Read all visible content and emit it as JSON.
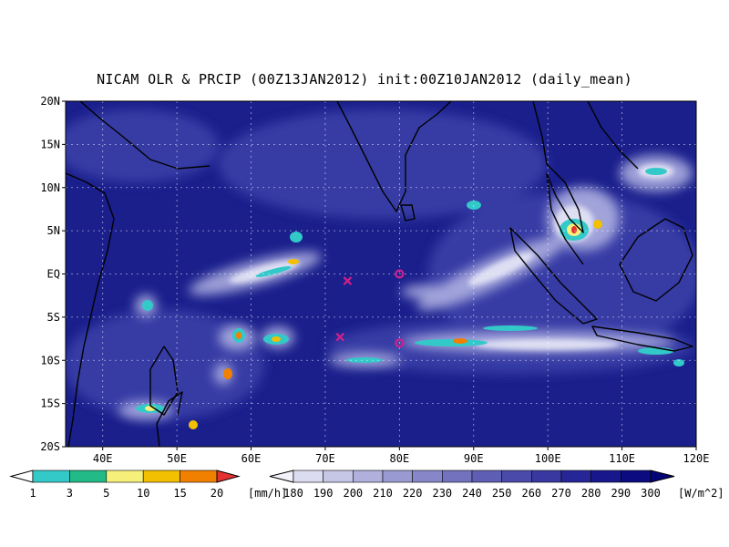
{
  "title": "NICAM OLR & PRCIP (00Z13JAN2012) init:00Z10JAN2012 (daily_mean)",
  "map": {
    "lon_range": [
      35,
      120
    ],
    "lat_range": [
      -20,
      20
    ],
    "lat_ticks": [
      "20N",
      "15N",
      "10N",
      "5N",
      "EQ",
      "5S",
      "10S",
      "15S",
      "20S"
    ],
    "lon_ticks": [
      "40E",
      "50E",
      "60E",
      "70E",
      "80E",
      "90E",
      "100E",
      "110E",
      "120E"
    ],
    "gridlines": "dotted",
    "background_color": "#1a1f8c",
    "coastline_color": "#000000"
  },
  "markers": [
    {
      "symbol": "x",
      "lon": 73.0,
      "lat": -0.8,
      "color": "#d0208a"
    },
    {
      "symbol": "o",
      "lon": 80.0,
      "lat": 0.0,
      "color": "#d0208a"
    },
    {
      "symbol": "x",
      "lon": 72.0,
      "lat": -7.3,
      "color": "#d0208a"
    },
    {
      "symbol": "o",
      "lon": 80.0,
      "lat": -8.0,
      "color": "#d0208a"
    }
  ],
  "precip_colorbar": {
    "labels": [
      "1",
      "3",
      "5",
      "10",
      "15",
      "20"
    ],
    "unit": "[mm/h]",
    "colors": [
      "#33c9c9",
      "#22bb88",
      "#f6f07a",
      "#f2c000",
      "#f28000",
      "#e63030"
    ]
  },
  "olr_colorbar": {
    "labels": [
      "180",
      "190",
      "200",
      "210",
      "220",
      "230",
      "240",
      "250",
      "260",
      "270",
      "280",
      "290",
      "300"
    ],
    "unit": "[W/m^2]",
    "colors": [
      "#f2f2fa",
      "#dcdcf0",
      "#c6c6e6",
      "#b0b0dc",
      "#9a9ad2",
      "#8686c8",
      "#7272be",
      "#5e5eb4",
      "#4a4aaa",
      "#3838a0",
      "#262696",
      "#18188c",
      "#0c0c80",
      "#040478"
    ]
  }
}
